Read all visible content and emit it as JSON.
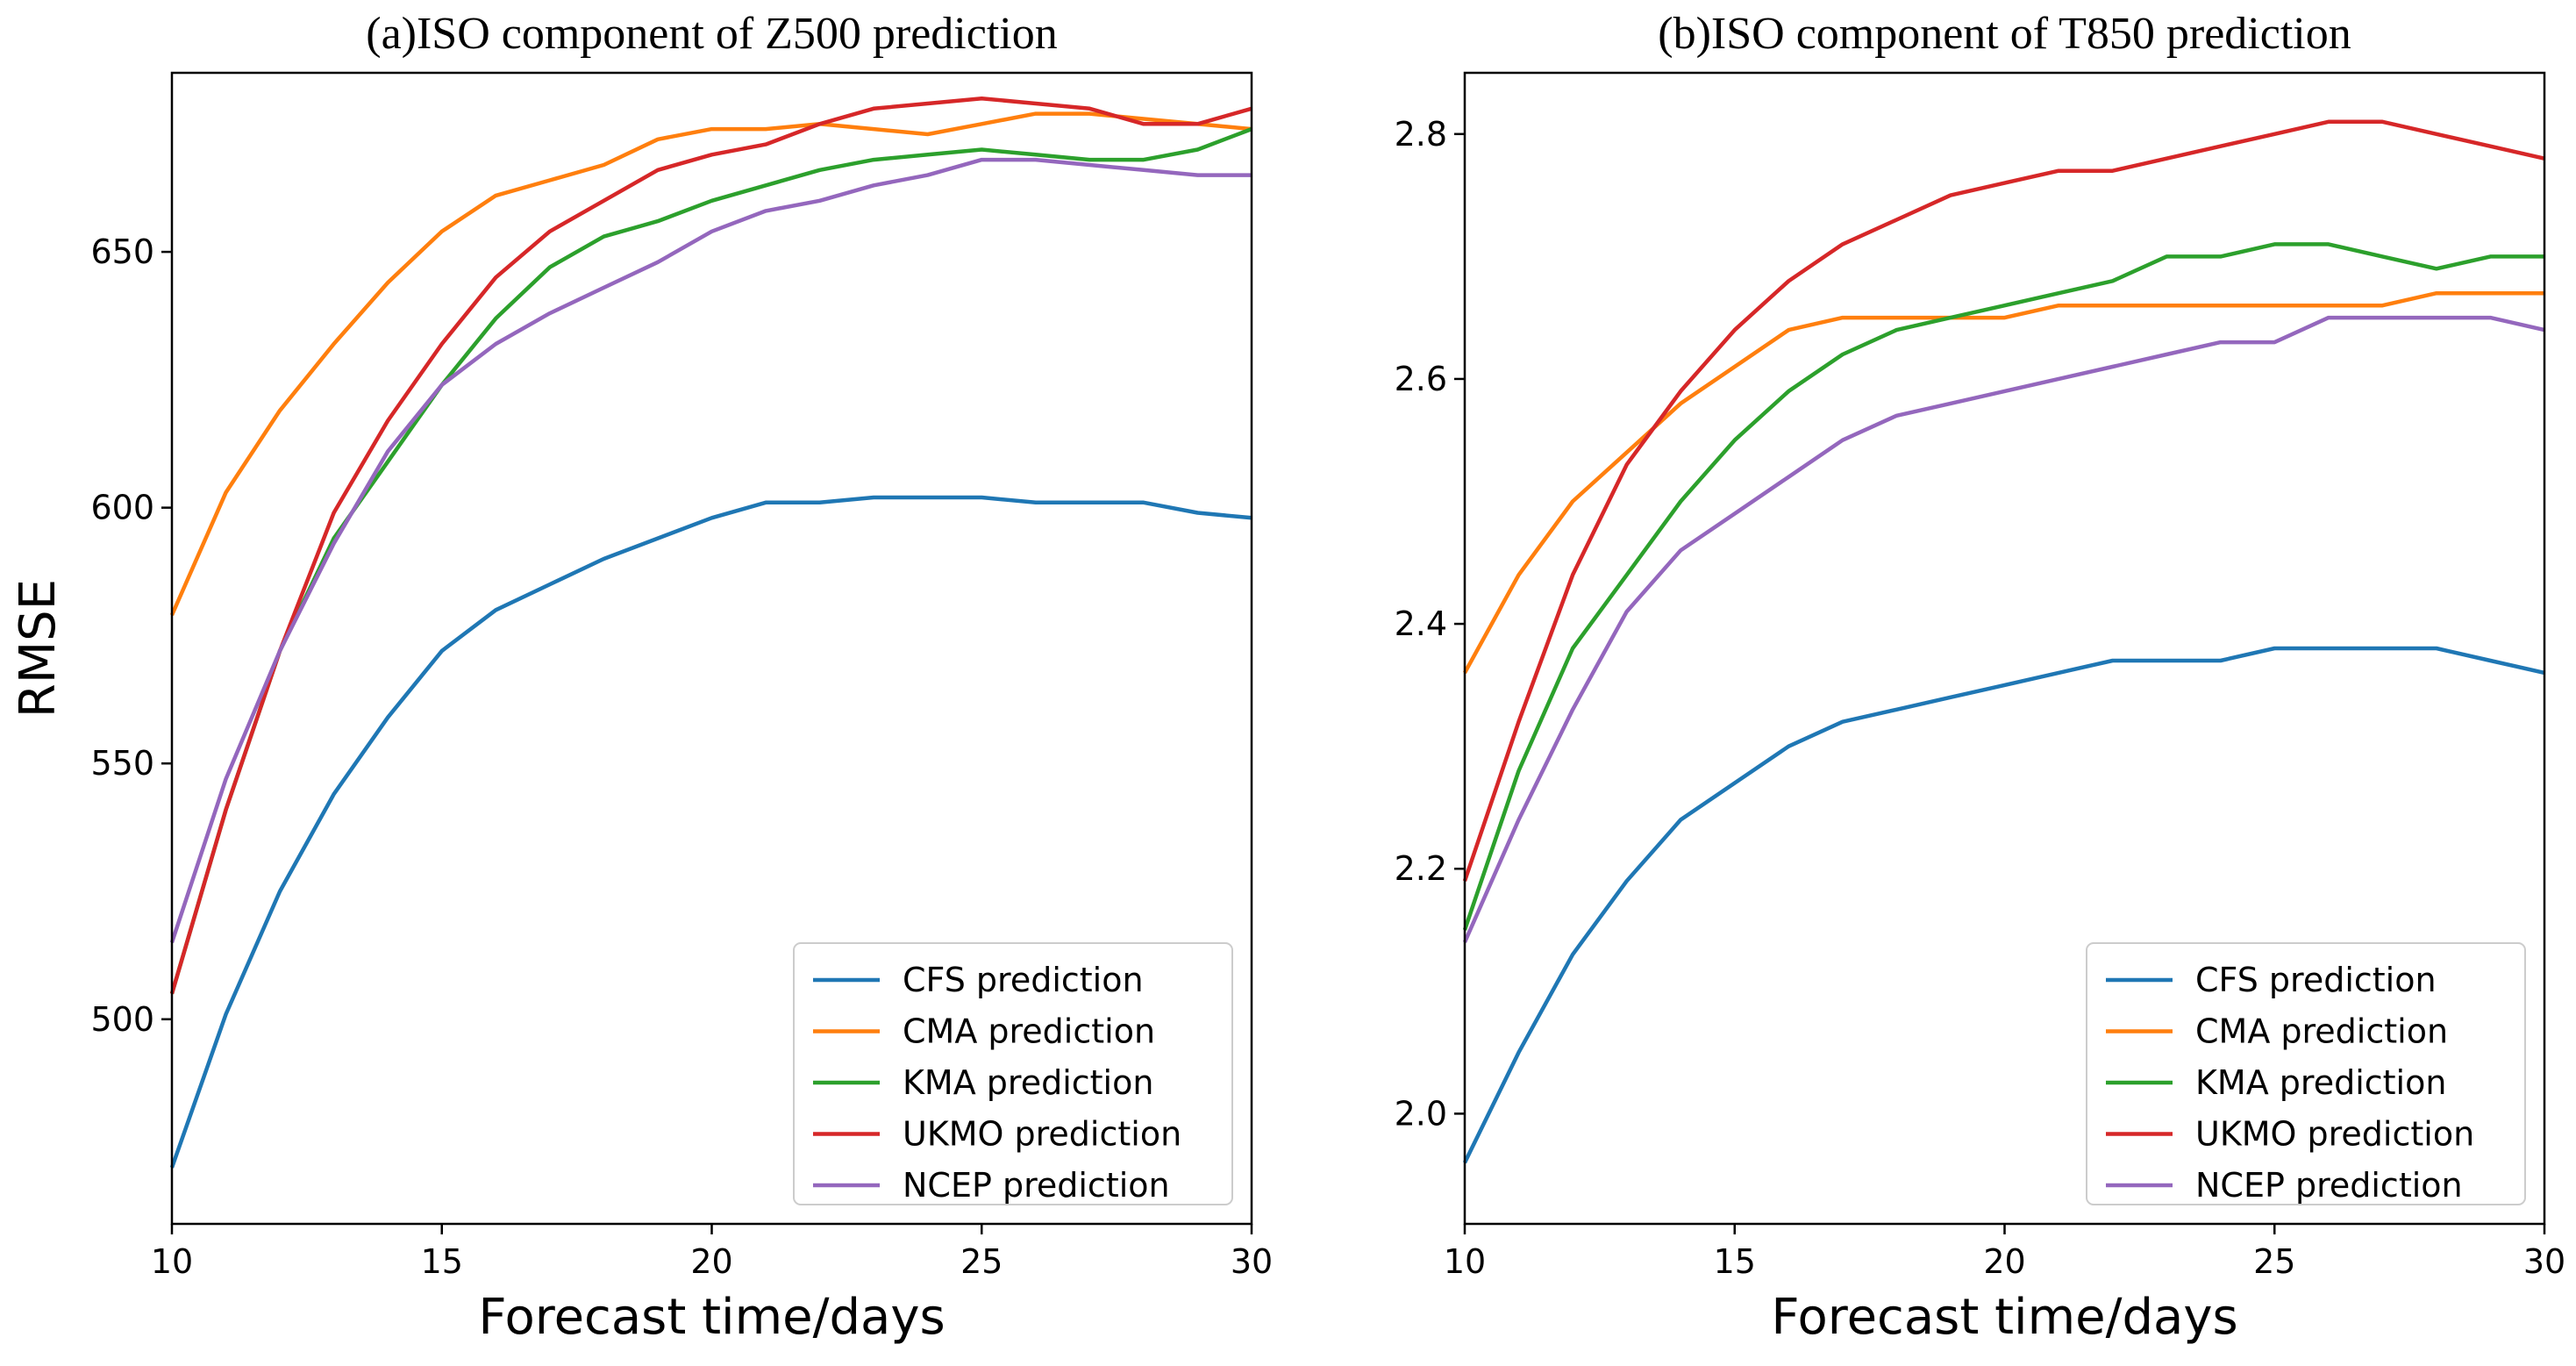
{
  "chart_data": [
    {
      "type": "line",
      "title": "(a)ISO component of Z500 prediction",
      "xlabel": "Forecast time/days",
      "ylabel": "RMSE",
      "xlim": [
        10,
        30
      ],
      "ylim": [
        460,
        685
      ],
      "xticks": [
        10,
        15,
        20,
        25,
        30
      ],
      "yticks": [
        500,
        550,
        600,
        650
      ],
      "grid": false,
      "legend_loc": "lower right",
      "x": [
        10,
        11,
        12,
        13,
        14,
        15,
        16,
        17,
        18,
        19,
        20,
        21,
        22,
        23,
        24,
        25,
        26,
        27,
        28,
        29,
        30
      ],
      "series": [
        {
          "name": "CFS prediction",
          "color": "#1f77b4",
          "values": [
            471,
            501,
            525,
            544,
            559,
            572,
            580,
            585,
            590,
            594,
            598,
            601,
            601,
            602,
            602,
            602,
            601,
            601,
            601,
            599,
            598
          ]
        },
        {
          "name": "CMA prediction",
          "color": "#ff7f0e",
          "values": [
            579,
            603,
            619,
            632,
            644,
            654,
            661,
            664,
            667,
            672,
            674,
            674,
            675,
            674,
            673,
            675,
            677,
            677,
            676,
            675,
            674
          ]
        },
        {
          "name": "KMA prediction",
          "color": "#2ca02c",
          "values": [
            505,
            541,
            572,
            594,
            609,
            624,
            637,
            647,
            653,
            656,
            660,
            663,
            666,
            668,
            669,
            670,
            669,
            668,
            668,
            670,
            674
          ]
        },
        {
          "name": "UKMO prediction",
          "color": "#d62728",
          "values": [
            505,
            541,
            572,
            599,
            617,
            632,
            645,
            654,
            660,
            666,
            669,
            671,
            675,
            678,
            679,
            680,
            679,
            678,
            675,
            675,
            678
          ]
        },
        {
          "name": "NCEP prediction",
          "color": "#9467bd",
          "values": [
            515,
            547,
            572,
            593,
            611,
            624,
            632,
            638,
            643,
            648,
            654,
            658,
            660,
            663,
            665,
            668,
            668,
            667,
            666,
            665,
            665
          ]
        }
      ]
    },
    {
      "type": "line",
      "title": "(b)ISO component of T850 prediction",
      "xlabel": "Forecast time/days",
      "ylabel": "",
      "xlim": [
        10,
        30
      ],
      "ylim": [
        1.91,
        2.85
      ],
      "xticks": [
        10,
        15,
        20,
        25,
        30
      ],
      "yticks": [
        "2.0",
        "2.2",
        "2.4",
        "2.6",
        "2.8"
      ],
      "grid": false,
      "legend_loc": "lower right",
      "x": [
        10,
        11,
        12,
        13,
        14,
        15,
        16,
        17,
        18,
        19,
        20,
        21,
        22,
        23,
        24,
        25,
        26,
        27,
        28,
        29,
        30
      ],
      "series": [
        {
          "name": "CFS prediction",
          "color": "#1f77b4",
          "values": [
            1.96,
            2.05,
            2.13,
            2.19,
            2.24,
            2.27,
            2.3,
            2.32,
            2.33,
            2.34,
            2.35,
            2.36,
            2.37,
            2.37,
            2.37,
            2.38,
            2.38,
            2.38,
            2.38,
            2.37,
            2.36
          ]
        },
        {
          "name": "CMA prediction",
          "color": "#ff7f0e",
          "values": [
            2.36,
            2.44,
            2.5,
            2.54,
            2.58,
            2.61,
            2.64,
            2.65,
            2.65,
            2.65,
            2.65,
            2.66,
            2.66,
            2.66,
            2.66,
            2.66,
            2.66,
            2.66,
            2.67,
            2.67,
            2.67
          ]
        },
        {
          "name": "KMA prediction",
          "color": "#2ca02c",
          "values": [
            2.15,
            2.28,
            2.38,
            2.44,
            2.5,
            2.55,
            2.59,
            2.62,
            2.64,
            2.65,
            2.66,
            2.67,
            2.68,
            2.7,
            2.7,
            2.71,
            2.71,
            2.7,
            2.69,
            2.7,
            2.7
          ]
        },
        {
          "name": "UKMO prediction",
          "color": "#d62728",
          "values": [
            2.19,
            2.32,
            2.44,
            2.53,
            2.59,
            2.64,
            2.68,
            2.71,
            2.73,
            2.75,
            2.76,
            2.77,
            2.77,
            2.78,
            2.79,
            2.8,
            2.81,
            2.81,
            2.8,
            2.79,
            2.78
          ]
        },
        {
          "name": "NCEP prediction",
          "color": "#9467bd",
          "values": [
            2.14,
            2.24,
            2.33,
            2.41,
            2.46,
            2.49,
            2.52,
            2.55,
            2.57,
            2.58,
            2.59,
            2.6,
            2.61,
            2.62,
            2.63,
            2.63,
            2.65,
            2.65,
            2.65,
            2.65,
            2.64
          ]
        }
      ]
    }
  ]
}
